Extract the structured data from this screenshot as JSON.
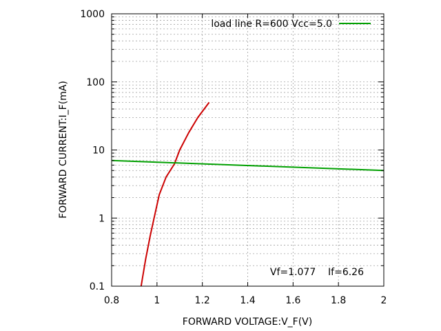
{
  "chart_data": {
    "type": "line",
    "title": "",
    "xlabel": "FORWARD VOLTAGE:V_F(V)",
    "ylabel": "FORWARD CURRENT:I_F(mA)",
    "xlim": [
      0.8,
      2.0
    ],
    "ylim": [
      0.1,
      1000
    ],
    "yscale": "log",
    "grid": true,
    "legend_position": "top-right",
    "x_ticks": [
      "0.8",
      "1",
      "1.2",
      "1.4",
      "1.6",
      "1.8",
      "2"
    ],
    "x_tick_values": [
      0.8,
      1.0,
      1.2,
      1.4,
      1.6,
      1.8,
      2.0
    ],
    "y_ticks": [
      "0.1",
      "1",
      "10",
      "100",
      "1000"
    ],
    "y_tick_values": [
      0.1,
      1,
      10,
      100,
      1000
    ],
    "annotation": "Vf=1.077    If=6.26",
    "series": [
      {
        "name": "",
        "color": "#cc0000",
        "x": [
          0.93,
          0.95,
          0.97,
          0.99,
          1.01,
          1.04,
          1.077,
          1.1,
          1.14,
          1.18,
          1.23
        ],
        "y": [
          0.1,
          0.25,
          0.55,
          1.1,
          2.2,
          4.0,
          6.26,
          10,
          18,
          30,
          50
        ]
      },
      {
        "name": "load line R=600 Vcc=5.0",
        "color": "#00a000",
        "x": [
          0.8,
          2.0
        ],
        "y": [
          7.0,
          5.0
        ]
      }
    ]
  }
}
